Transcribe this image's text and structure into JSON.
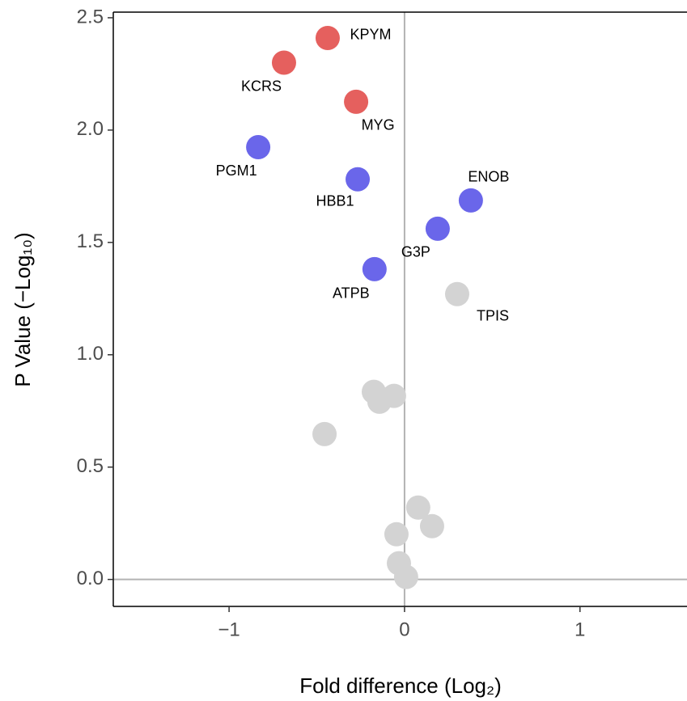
{
  "chart_data": {
    "type": "scatter",
    "xlabel": "Fold difference (Log₂)",
    "ylabel": "P Value (−Log₁₀)",
    "xlim": [
      -1.66,
      1.61
    ],
    "ylim": [
      -0.12,
      2.525
    ],
    "xticks": [
      {
        "value": -1,
        "label": "−1"
      },
      0,
      1
    ],
    "yticks": [
      {
        "value": 0,
        "label": "0.0"
      },
      0.5,
      {
        "value": 1,
        "label": "1.0"
      },
      1.5,
      {
        "value": 2,
        "label": "2.0"
      },
      2.5
    ],
    "reference_lines": {
      "x": 0,
      "y": 0
    },
    "series": [
      {
        "color": "#e5605e",
        "x": [
          -0.438,
          -0.687,
          -0.276
        ],
        "values": [
          2.41,
          2.3,
          2.126
        ],
        "labels": [
          "KPYM",
          "KCRS",
          "MYG"
        ]
      },
      {
        "color": "#6a66ea",
        "x": [
          -0.834,
          -0.267,
          0.378,
          0.189,
          -0.171
        ],
        "values": [
          1.924,
          1.781,
          1.687,
          1.561,
          1.381
        ],
        "labels": [
          "PGM1",
          "HBB1",
          "ENOB",
          "G3P",
          "ATPB"
        ]
      },
      {
        "color": "#d3d3d3",
        "x": [
          0.3,
          -0.175,
          -0.143,
          -0.06,
          -0.456,
          0.078,
          0.157,
          -0.046,
          -0.032,
          0.009
        ],
        "values": [
          1.27,
          0.835,
          0.791,
          0.817,
          0.647,
          0.32,
          0.237,
          0.201,
          0.072,
          0.011
        ],
        "labels": [
          "TPIS",
          null,
          null,
          null,
          null,
          null,
          null,
          null,
          null,
          null
        ]
      }
    ]
  }
}
